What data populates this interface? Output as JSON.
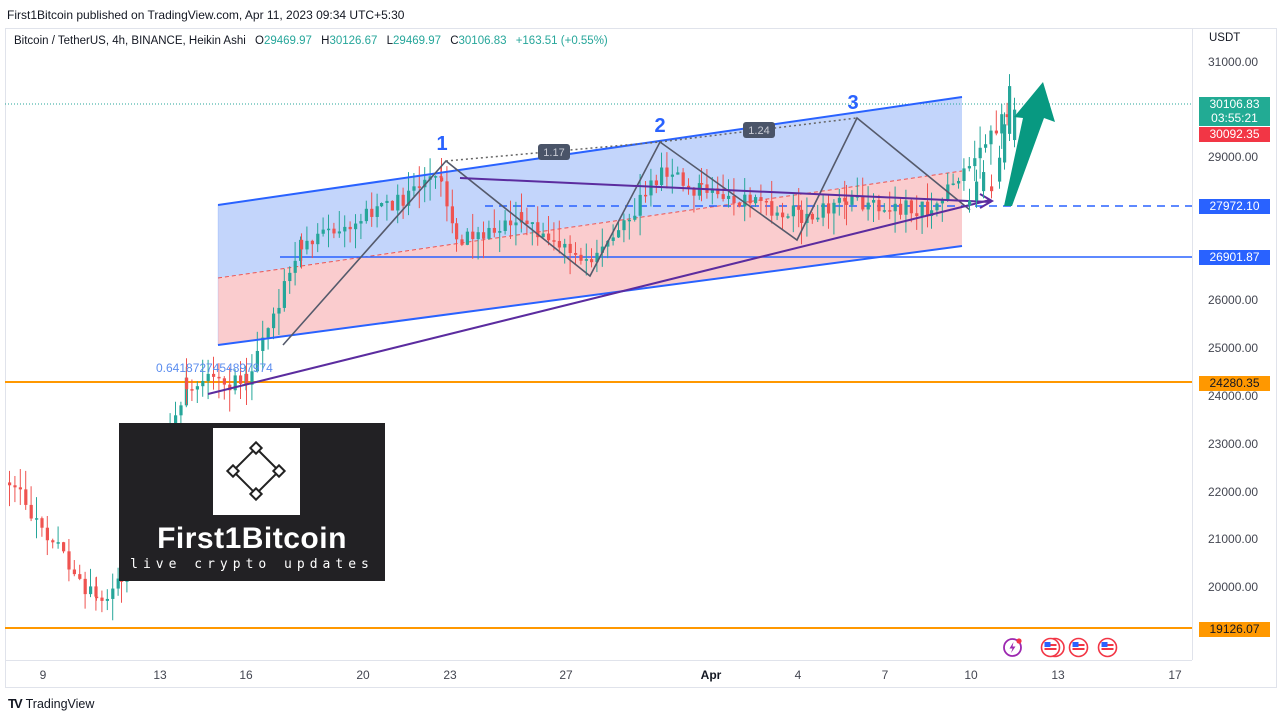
{
  "publish_line": "First1Bitcoin published on TradingView.com, Apr 11, 2023 09:34 UTC+5:30",
  "legend": {
    "symbol": "Bitcoin / TetherUS, 4h, BINANCE, Heikin Ashi",
    "open_key": "O",
    "open": "29469.97",
    "high_key": "H",
    "high": "30126.67",
    "low_key": "L",
    "low": "29469.97",
    "close_key": "C",
    "close": "30106.83",
    "change": "+163.51 (+0.55%)"
  },
  "price_axis": {
    "currency": "USDT",
    "ticks": [
      "31000.00",
      "29000.00",
      "26000.00",
      "25000.00",
      "24000.00",
      "23000.00",
      "22000.00",
      "21000.00",
      "20000.00"
    ],
    "tags": {
      "last_price": "30106.83",
      "countdown": "03:55:21",
      "prev_close": "30092.35",
      "dashed_level": "27972.10",
      "support_blue": "26901.87",
      "orange_high": "24280.35",
      "orange_low": "19126.07"
    }
  },
  "time_axis": {
    "labels": [
      "9",
      "13",
      "16",
      "20",
      "23",
      "27",
      "Apr",
      "4",
      "7",
      "10",
      "13",
      "17"
    ]
  },
  "annotations": {
    "wave_1": "1",
    "wave_2": "2",
    "wave_3": "3",
    "ratio_1": "1.17",
    "ratio_2": "1.24",
    "fib_text": "0.6418727454897974"
  },
  "watermark": {
    "title": "First1Bitcoin",
    "subtitle": "live crypto updates"
  },
  "footer": {
    "brand": "TradingView",
    "logo": "TV"
  },
  "icons": [
    "lightning-event-icon",
    "us-flag-event-icon",
    "us-flag-event-icon",
    "us-flag-event-icon"
  ],
  "colors": {
    "up": "#26a69a",
    "down": "#ef5350",
    "blue_line": "#2962ff",
    "orange_line": "#ff9800",
    "purple_line": "#5b2c9f",
    "arrow_green": "#089981",
    "channel_blue_fill": "#bcd0fb",
    "channel_red_fill": "#f9c6c9"
  },
  "chart_data": {
    "type": "candlestick",
    "title": "Bitcoin / TetherUS, 4h, BINANCE, Heikin Ashi",
    "xlabel": "",
    "ylabel": "USDT",
    "ylim": [
      18900,
      31600
    ],
    "x_ticks": [
      "9",
      "13",
      "16",
      "20",
      "23",
      "27",
      "Apr",
      "4",
      "7",
      "10",
      "13",
      "17"
    ],
    "y_ticks": [
      20000,
      21000,
      22000,
      23000,
      24000,
      25000,
      26000,
      29000,
      31000
    ],
    "ohlc_latest": {
      "open": 29469.97,
      "high": 30126.67,
      "low": 29469.97,
      "close": 30106.83,
      "change": 163.51,
      "change_pct": 0.55
    },
    "horizontal_levels": [
      {
        "name": "last_price",
        "value": 30106.83,
        "color": "#26a69a",
        "style": "dotted"
      },
      {
        "name": "prev_close",
        "value": 30092.35,
        "color": "#ef5350"
      },
      {
        "name": "breakout_level",
        "value": 27972.1,
        "color": "#2962ff",
        "style": "dashed"
      },
      {
        "name": "support",
        "value": 26901.87,
        "color": "#2962ff"
      },
      {
        "name": "resistance_orange",
        "value": 24280.35,
        "color": "#ff9800"
      },
      {
        "name": "support_orange",
        "value": 19126.07,
        "color": "#ff9800"
      }
    ],
    "wave_peaks": [
      {
        "label": "1",
        "date": "Mar 22",
        "price": 28900
      },
      {
        "label": "2",
        "date": "Mar 30",
        "price": 29250
      },
      {
        "label": "3",
        "date": "Apr 5",
        "price": 29750
      }
    ],
    "ratios": [
      1.17,
      1.24
    ],
    "annotations": [
      "Ascending channel (blue upper / red lower zones)",
      "Converging purple triangle",
      "Green breakout arrow up after Apr 10"
    ],
    "price_path_approx": [
      {
        "date": "Mar 8",
        "close": 22300
      },
      {
        "date": "Mar 10",
        "close": 19800
      },
      {
        "date": "Mar 12",
        "close": 20300
      },
      {
        "date": "Mar 14",
        "close": 24400
      },
      {
        "date": "Mar 16",
        "close": 24400
      },
      {
        "date": "Mar 18",
        "close": 27300
      },
      {
        "date": "Mar 20",
        "close": 28000
      },
      {
        "date": "Mar 22",
        "close": 28700
      },
      {
        "date": "Mar 23",
        "close": 27400
      },
      {
        "date": "Mar 25",
        "close": 27800
      },
      {
        "date": "Mar 28",
        "close": 26800
      },
      {
        "date": "Mar 30",
        "close": 28800
      },
      {
        "date": "Apr 1",
        "close": 28400
      },
      {
        "date": "Apr 4",
        "close": 27900
      },
      {
        "date": "Apr 6",
        "close": 28200
      },
      {
        "date": "Apr 9",
        "close": 28000
      },
      {
        "date": "Apr 11",
        "close": 30106.83
      }
    ]
  }
}
